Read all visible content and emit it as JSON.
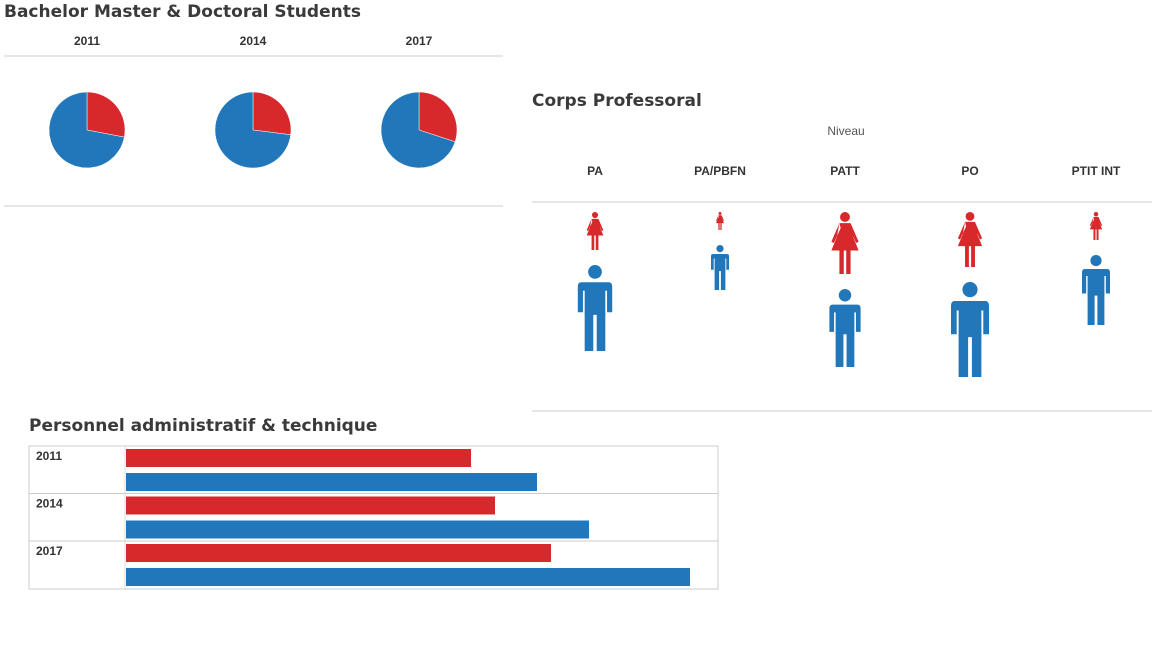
{
  "chart_data": [
    {
      "type": "pie",
      "title": "Bachelor Master & Doctoral Students",
      "colors": [
        "#d7282b",
        "#2177b9"
      ],
      "pies": [
        {
          "label": "2011",
          "values": [
            28,
            72
          ]
        },
        {
          "label": "2014",
          "values": [
            27,
            73
          ]
        },
        {
          "label": "2017",
          "values": [
            30,
            70
          ]
        }
      ]
    },
    {
      "type": "pictogram",
      "title": "Corps Professoral",
      "x_label": "Niveau",
      "categories": [
        "PA",
        "PA/PBFN",
        "PATT",
        "PO",
        "PTIT INT"
      ],
      "series": [
        {
          "color": "#d7282b",
          "shape": "female",
          "values": [
            38,
            18,
            62,
            55,
            28
          ]
        },
        {
          "color": "#2177b9",
          "shape": "male",
          "values": [
            86,
            45,
            78,
            95,
            70
          ]
        }
      ]
    },
    {
      "type": "hbar",
      "title": "Personnel administratif & technique",
      "categories": [
        "2011",
        "2014",
        "2017"
      ],
      "xlim": [
        0,
        592
      ],
      "series": [
        {
          "color": "#d7282b",
          "values": [
            345,
            369,
            425
          ]
        },
        {
          "color": "#2177b9",
          "values": [
            411,
            463,
            564
          ]
        }
      ]
    }
  ]
}
